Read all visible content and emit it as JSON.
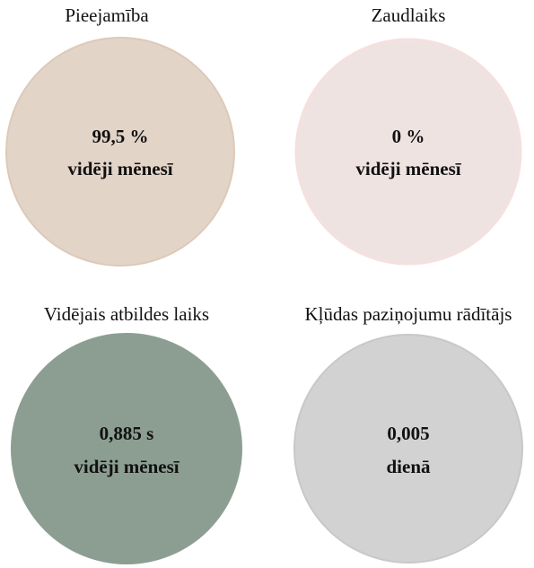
{
  "items": [
    {
      "title": "Pieejamība",
      "value": "99,5 %",
      "note": "vidēji mēnesī"
    },
    {
      "title": "Zaudlaiks",
      "value": "0 %",
      "note": "vidēji mēnesī"
    },
    {
      "title": "Vidējais atbildes laiks",
      "value": "0,885 s",
      "note": "vidēji mēnesī"
    },
    {
      "title": "Kļūdas paziņojumu rādītājs",
      "value": "0,005",
      "note": "dienā"
    }
  ]
}
